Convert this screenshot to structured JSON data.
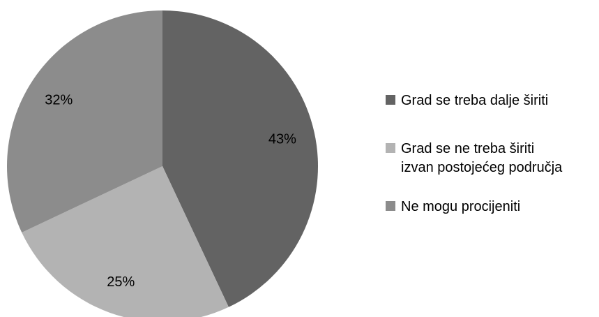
{
  "chart_data": {
    "type": "pie",
    "title": "",
    "categories": [
      "Grad se treba dalje širiti",
      "Grad se ne treba širiti izvan postojećeg područja",
      "Ne mogu procijeniti"
    ],
    "values": [
      43,
      25,
      32
    ],
    "value_unit": "%",
    "data_labels": [
      "43%",
      "25%",
      "32%"
    ],
    "legend": {
      "placement": "right",
      "entries": [
        {
          "lines": [
            "Grad se treba dalje širiti"
          ]
        },
        {
          "lines": [
            "Grad se ne treba širiti",
            "izvan postojećeg područja"
          ]
        },
        {
          "lines": [
            "Ne mogu procijeniti"
          ]
        }
      ]
    },
    "colors": [
      "#636363",
      "#b3b3b3",
      "#8c8c8c"
    ],
    "start_angle": "12 o'clock",
    "direction": "clockwise"
  }
}
